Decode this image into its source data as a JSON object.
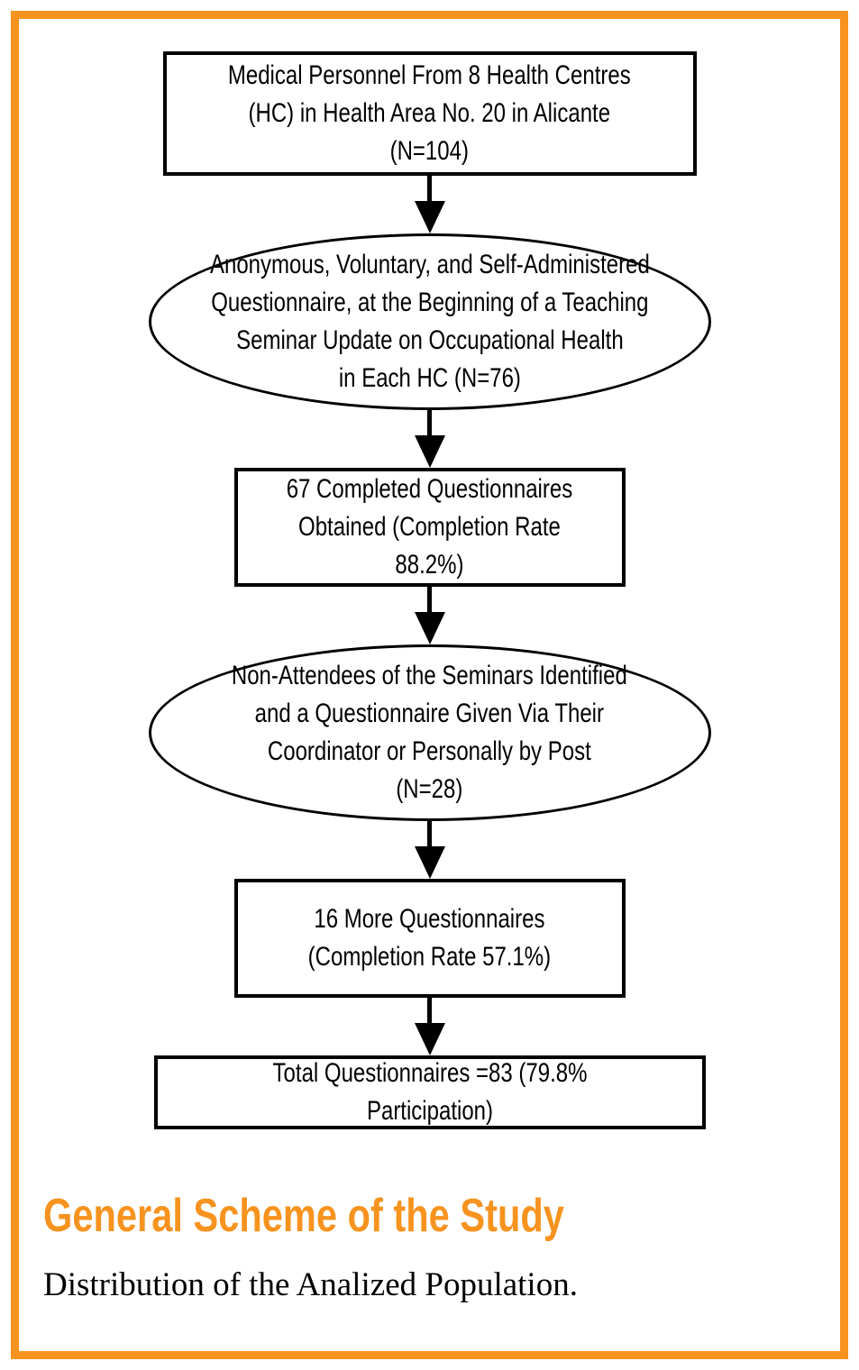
{
  "figure": {
    "title": "General Scheme of the Study",
    "caption": "Distribution of the Analized Population.",
    "accent_color": "#F7931E"
  },
  "flowchart": {
    "nodes": [
      {
        "shape": "rectangle",
        "text": "Medical Personnel From 8 Health Centres\n(HC) in Health Area No. 20 in Alicante\n(N=104)"
      },
      {
        "shape": "ellipse",
        "text": "Anonymous, Voluntary, and Self-Administered\nQuestionnaire, at the Beginning of a Teaching\nSeminar Update on Occupational Health\nin Each HC (N=76)"
      },
      {
        "shape": "rectangle",
        "text": "67 Completed Questionnaires\nObtained (Completion Rate\n88.2%)"
      },
      {
        "shape": "ellipse",
        "text": "Non-Attendees of the Seminars Identified\nand a Questionnaire Given Via Their\nCoordinator or Personally by Post\n(N=28)"
      },
      {
        "shape": "rectangle",
        "text": "16 More Questionnaires\n(Completion Rate 57.1%)"
      },
      {
        "shape": "rectangle",
        "text": "Total Questionnaires =83 (79.8% Participation)"
      }
    ]
  }
}
